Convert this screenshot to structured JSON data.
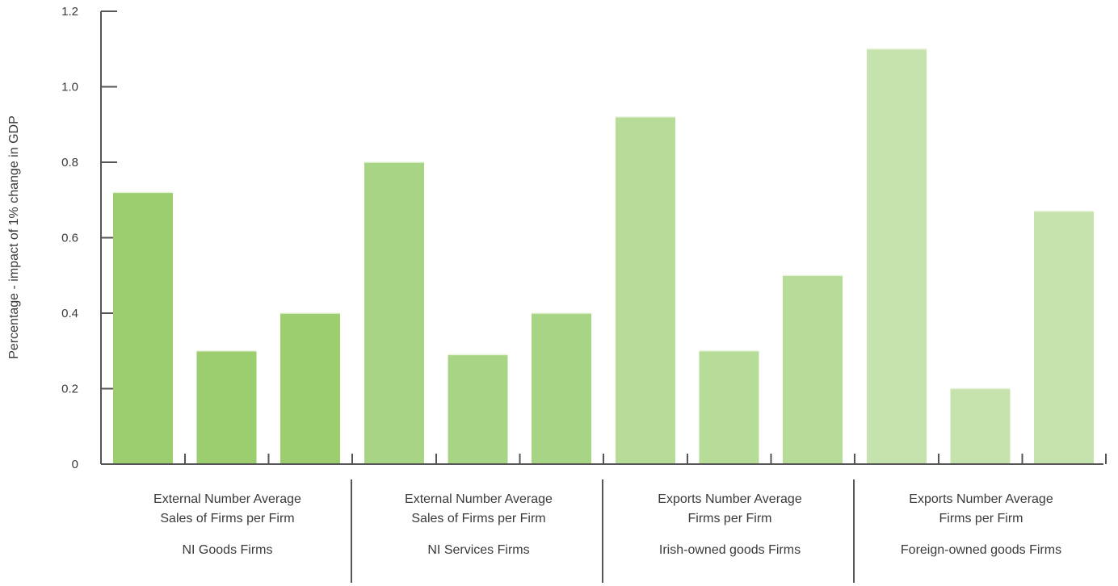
{
  "chart_data": {
    "type": "bar",
    "ylabel": "Percentage - impact of 1% change in GDP",
    "ylim": [
      0,
      1.2
    ],
    "yticks": [
      0,
      0.2,
      0.4,
      0.6,
      0.8,
      1.0,
      1.2
    ],
    "ytick_labels": [
      "0",
      "0.2",
      "0.4",
      "0.6",
      "0.8",
      "1.0",
      "1.2"
    ],
    "grid": false,
    "groups": [
      {
        "measure_lines": [
          "External Number Average",
          "Sales of Firms per Firm"
        ],
        "group_label": "NI Goods Firms",
        "values": [
          0.72,
          0.3,
          0.4
        ],
        "color": "#9ccd6e"
      },
      {
        "measure_lines": [
          "External Number Average",
          "Sales of Firms per Firm"
        ],
        "group_label": "NI Services Firms",
        "values": [
          0.8,
          0.29,
          0.4
        ],
        "color": "#a8d585"
      },
      {
        "measure_lines": [
          "Exports Number Average",
          "Firms per Firm"
        ],
        "group_label": "Irish-owned goods Firms",
        "values": [
          0.92,
          0.3,
          0.5
        ],
        "color": "#b6dc98"
      },
      {
        "measure_lines": [
          "Exports Number Average",
          "Firms per Firm"
        ],
        "group_label": "Foreign-owned goods Firms",
        "values": [
          1.1,
          0.2,
          0.67
        ],
        "color": "#c7e3ad"
      }
    ]
  }
}
